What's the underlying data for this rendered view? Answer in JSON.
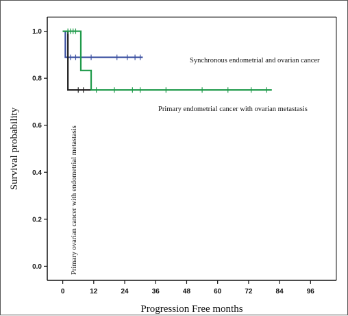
{
  "chart_data": {
    "type": "line",
    "subtype": "kaplan-meier step",
    "xlabel": "Progression Free months",
    "ylabel": "Survival probability",
    "xlim": [
      -6,
      106
    ],
    "ylim": [
      -0.06,
      1.06
    ],
    "xticks": [
      0,
      12,
      24,
      36,
      48,
      60,
      72,
      84,
      96
    ],
    "yticks": [
      0.0,
      0.2,
      0.4,
      0.6,
      0.8,
      1.0
    ],
    "ytick_labels": [
      "0.0",
      "0.2",
      "0.4",
      "0.6",
      "0.8",
      "1.0"
    ],
    "grid": false,
    "series": [
      {
        "name": "Synchronous endometrial and ovarian cancer",
        "color": "#3a4fa0",
        "steps": [
          [
            0,
            1.0
          ],
          [
            1,
            1.0
          ],
          [
            1,
            0.889
          ],
          [
            31,
            0.889
          ]
        ],
        "censored": [
          [
            3,
            0.889
          ],
          [
            5,
            0.889
          ],
          [
            11,
            0.889
          ],
          [
            21,
            0.889
          ],
          [
            25,
            0.889
          ],
          [
            28,
            0.889
          ],
          [
            30,
            0.889
          ]
        ]
      },
      {
        "name": "Primary endometrial cancer with ovarian metastasis",
        "color": "#1f9a4a",
        "steps": [
          [
            0,
            1.0
          ],
          [
            7,
            1.0
          ],
          [
            7,
            0.833
          ],
          [
            11,
            0.833
          ],
          [
            11,
            0.75
          ],
          [
            81,
            0.75
          ]
        ],
        "censored": [
          [
            2,
            1.0
          ],
          [
            3,
            1.0
          ],
          [
            4,
            1.0
          ],
          [
            5,
            1.0
          ],
          [
            13,
            0.75
          ],
          [
            20,
            0.75
          ],
          [
            27,
            0.75
          ],
          [
            30,
            0.75
          ],
          [
            40,
            0.75
          ],
          [
            54,
            0.75
          ],
          [
            64,
            0.75
          ],
          [
            73,
            0.75
          ],
          [
            79,
            0.75
          ]
        ]
      },
      {
        "name": "Primary ovarian cancer with endometrial metastasis",
        "color": "#222222",
        "steps": [
          [
            0,
            1.0
          ],
          [
            2,
            1.0
          ],
          [
            2,
            0.75
          ],
          [
            11,
            0.75
          ]
        ],
        "censored": [
          [
            6,
            0.75
          ],
          [
            8,
            0.75
          ]
        ]
      }
    ],
    "annotations": [
      {
        "text": "Synchronous endometrial and ovarian cancer",
        "series": 0
      },
      {
        "text": "Primary endometrial cancer with ovarian metastasis",
        "series": 1
      },
      {
        "text": "Primary ovarian cancer with endometrial metastasis",
        "series": 2,
        "orientation": "vertical"
      }
    ]
  }
}
